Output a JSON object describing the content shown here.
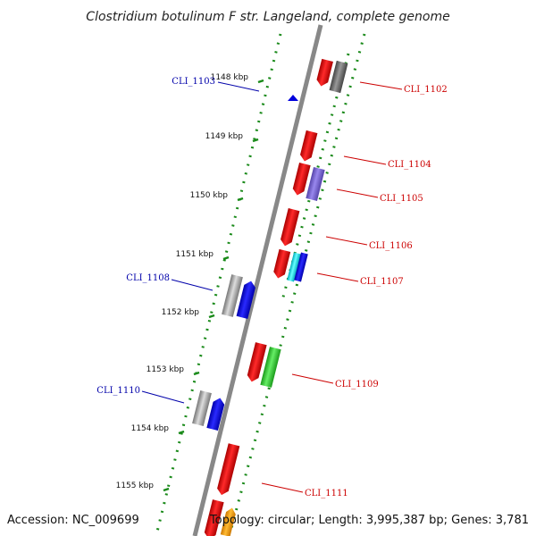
{
  "title": "Clostridium botulinum F str. Langeland, complete genome",
  "footer": {
    "accession": "Accession: NC_009699",
    "topology": "Topology: circular; Length: 3,995,387 bp; Genes: 3,781"
  },
  "colors": {
    "backbone": "#888888",
    "dots": "#1a8a1a",
    "forward_label": "#cc0000",
    "reverse_label": "#0000aa"
  },
  "kbp_ticks": [
    "1148 kbp",
    "1149 kbp",
    "1150 kbp",
    "1151 kbp",
    "1152 kbp",
    "1153 kbp",
    "1154 kbp",
    "1155 kbp"
  ],
  "gene_labels": [
    {
      "name": "CLI_1103",
      "strand": "reverse"
    },
    {
      "name": "CLI_1102",
      "strand": "forward"
    },
    {
      "name": "CLI_1104",
      "strand": "forward"
    },
    {
      "name": "CLI_1105",
      "strand": "forward"
    },
    {
      "name": "CLI_1106",
      "strand": "forward"
    },
    {
      "name": "CLI_1107",
      "strand": "forward"
    },
    {
      "name": "CLI_1108",
      "strand": "reverse"
    },
    {
      "name": "CLI_1109",
      "strand": "forward"
    },
    {
      "name": "CLI_1110",
      "strand": "reverse"
    },
    {
      "name": "CLI_1111",
      "strand": "forward"
    }
  ]
}
